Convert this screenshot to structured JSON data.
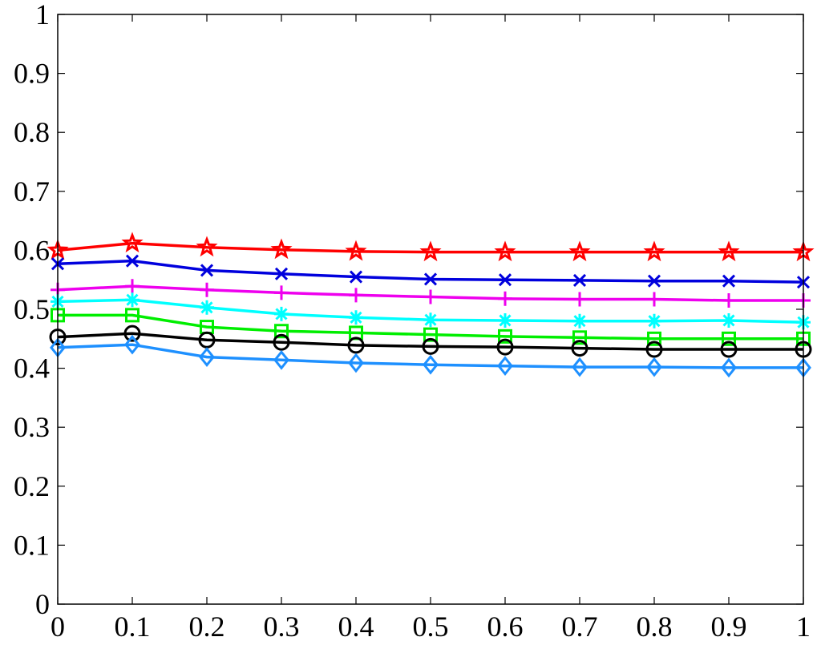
{
  "chart_data": {
    "type": "line",
    "title": "",
    "xlabel": "",
    "ylabel": "",
    "xlim": [
      0,
      1
    ],
    "ylim": [
      0,
      1
    ],
    "grid": false,
    "x": [
      0,
      0.1,
      0.2,
      0.3,
      0.4,
      0.5,
      0.6,
      0.7,
      0.8,
      0.9,
      1
    ],
    "x_tick_labels": [
      "0",
      "0.1",
      "0.2",
      "0.3",
      "0.4",
      "0.5",
      "0.6",
      "0.7",
      "0.8",
      "0.9",
      "1"
    ],
    "y_ticks": [
      0,
      0.1,
      0.2,
      0.3,
      0.4,
      0.5,
      0.6,
      0.7,
      0.8,
      0.9,
      1
    ],
    "y_tick_labels": [
      "0",
      "0.1",
      "0.2",
      "0.3",
      "0.4",
      "0.5",
      "0.6",
      "0.7",
      "0.8",
      "0.9",
      "1"
    ],
    "series": [
      {
        "color": "#ff0000",
        "marker": "pentagram",
        "values": [
          0.6,
          0.612,
          0.605,
          0.601,
          0.598,
          0.597,
          0.597,
          0.597,
          0.597,
          0.597,
          0.597
        ]
      },
      {
        "color": "#0000dd",
        "marker": "x",
        "values": [
          0.577,
          0.582,
          0.566,
          0.56,
          0.555,
          0.551,
          0.55,
          0.549,
          0.548,
          0.548,
          0.546
        ]
      },
      {
        "color": "#ee00ee",
        "marker": "plus",
        "values": [
          0.533,
          0.539,
          0.533,
          0.528,
          0.524,
          0.521,
          0.518,
          0.517,
          0.517,
          0.515,
          0.515
        ]
      },
      {
        "color": "#00ffff",
        "marker": "asterisk",
        "values": [
          0.513,
          0.516,
          0.503,
          0.492,
          0.486,
          0.482,
          0.481,
          0.48,
          0.48,
          0.481,
          0.478
        ]
      },
      {
        "color": "#00ee00",
        "marker": "square",
        "values": [
          0.49,
          0.49,
          0.47,
          0.463,
          0.46,
          0.457,
          0.454,
          0.452,
          0.45,
          0.45,
          0.45
        ]
      },
      {
        "color": "#000000",
        "marker": "circle",
        "values": [
          0.453,
          0.459,
          0.448,
          0.444,
          0.439,
          0.437,
          0.436,
          0.434,
          0.432,
          0.432,
          0.432
        ]
      },
      {
        "color": "#1e90ff",
        "marker": "diamond",
        "values": [
          0.435,
          0.44,
          0.419,
          0.414,
          0.409,
          0.406,
          0.404,
          0.402,
          0.402,
          0.401,
          0.401
        ]
      }
    ]
  }
}
